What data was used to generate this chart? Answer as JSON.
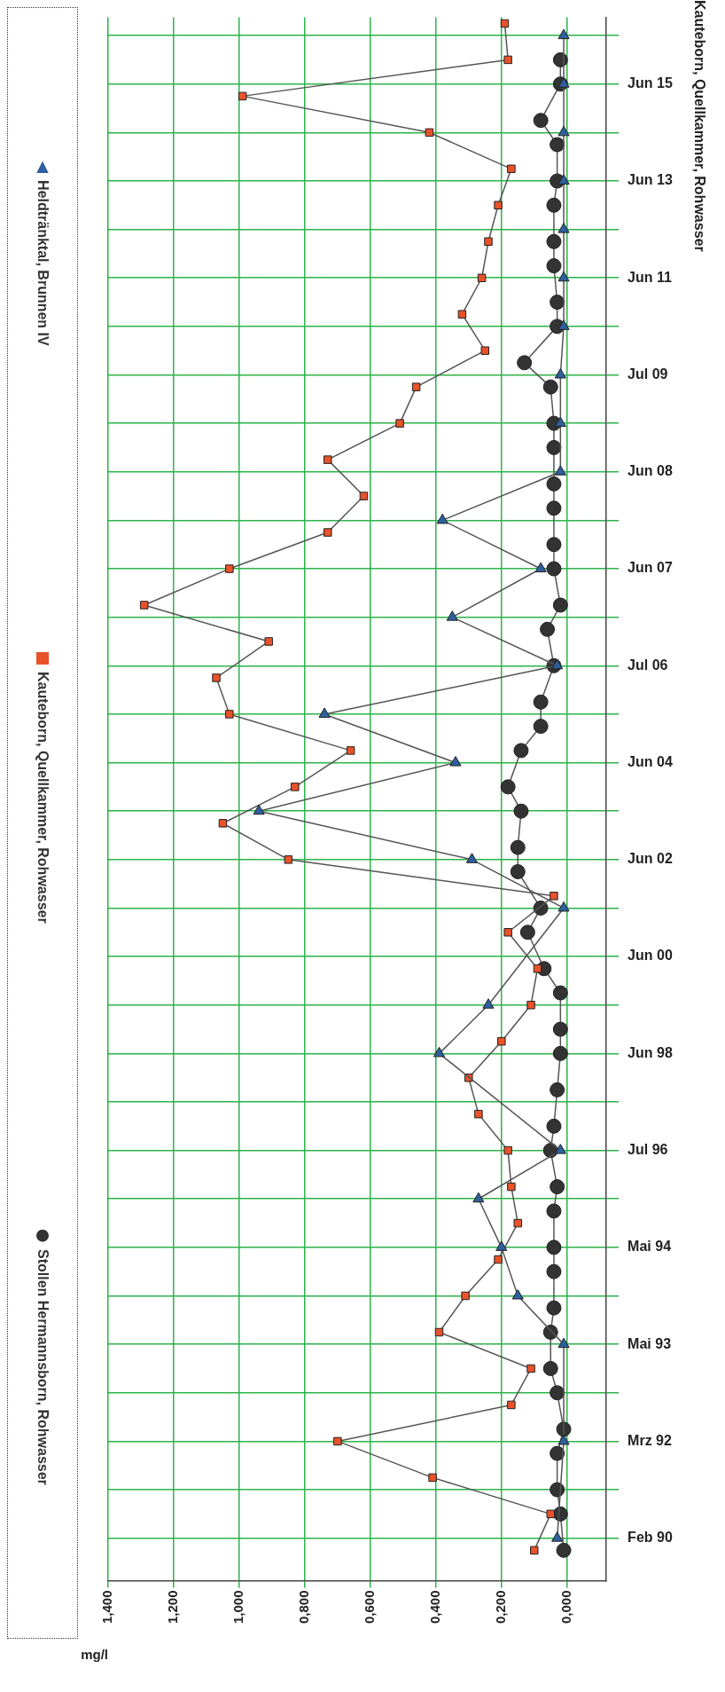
{
  "chart_data": {
    "type": "line",
    "orientation": "horizontal",
    "title": "Kauteborn, Quellkammer, Rohwasser",
    "xlabel": "mg/l",
    "xlim": [
      1.4,
      -0.12
    ],
    "xticks": [
      {
        "value": 1.4,
        "label": "1,400"
      },
      {
        "value": 1.2,
        "label": "1,200"
      },
      {
        "value": 1.0,
        "label": "1,000"
      },
      {
        "value": 0.8,
        "label": "0,800"
      },
      {
        "value": 0.6,
        "label": "0,600"
      },
      {
        "value": 0.4,
        "label": "0,400"
      },
      {
        "value": 0.2,
        "label": "0,200"
      },
      {
        "value": 0,
        "label": "0,000"
      }
    ],
    "categories": [
      null,
      null,
      null,
      null,
      null,
      "Jun 15",
      null,
      null,
      null,
      null,
      null,
      null,
      null,
      "Jun 13",
      null,
      null,
      null,
      null,
      null,
      null,
      null,
      "Jun 11",
      null,
      null,
      null,
      null,
      null,
      null,
      null,
      "Jul 09",
      null,
      null,
      null,
      null,
      null,
      null,
      null,
      "Jun 08",
      null,
      null,
      null,
      null,
      null,
      null,
      null,
      "Jun 07",
      null,
      null,
      null,
      null,
      null,
      null,
      null,
      "Jul 06",
      null,
      null,
      null,
      null,
      null,
      null,
      null,
      "Jun 04",
      null,
      null,
      null,
      null,
      null,
      null,
      null,
      "Jun 02",
      null,
      null,
      null,
      null,
      null,
      null,
      null,
      "Jun 00",
      null,
      null,
      null,
      null,
      null,
      null,
      null,
      "Jun 98",
      null,
      null,
      null,
      null,
      null,
      null,
      null,
      "Jul 96",
      null,
      null,
      null,
      null,
      null,
      null,
      null,
      "Mai 94",
      null,
      null,
      null,
      null,
      null,
      null,
      null,
      "Mai 93",
      null,
      null,
      null,
      null,
      null,
      null,
      null,
      "Mrz 92",
      null,
      null,
      null,
      null,
      null,
      null,
      null,
      "Feb 90",
      null,
      null,
      null
    ],
    "grid": true,
    "legend": "left",
    "series": [
      {
        "name": "Heldtränktal, Brunnen IV",
        "color": "#2e5f9e",
        "marker": "triangle",
        "values": [
          null,
          0.01,
          null,
          null,
          null,
          0.01,
          null,
          null,
          null,
          0.01,
          null,
          null,
          null,
          0.01,
          null,
          null,
          null,
          0.01,
          null,
          null,
          null,
          0.01,
          null,
          null,
          null,
          0.01,
          null,
          null,
          null,
          0.02,
          null,
          null,
          null,
          0.02,
          null,
          null,
          null,
          0.02,
          null,
          null,
          null,
          0.38,
          null,
          null,
          null,
          0.08,
          null,
          null,
          null,
          0.35,
          null,
          null,
          null,
          0.03,
          null,
          null,
          null,
          0.74,
          null,
          null,
          null,
          0.34,
          null,
          null,
          null,
          0.94,
          null,
          null,
          null,
          0.29,
          null,
          null,
          null,
          0.01,
          null,
          null,
          null,
          null,
          null,
          null,
          null,
          0.24,
          null,
          null,
          null,
          0.39,
          null,
          null,
          null,
          null,
          null,
          null,
          null,
          0.02,
          null,
          null,
          null,
          0.27,
          null,
          null,
          null,
          0.2,
          null,
          null,
          null,
          0.15,
          null,
          null,
          null,
          0.01,
          null,
          null,
          null,
          null,
          null,
          null,
          null,
          0.01,
          null,
          null,
          null,
          null,
          null,
          null,
          null,
          0.03,
          null,
          null,
          null
        ]
      },
      {
        "name": "Kauteborn, Quellkammer, Rohwasser",
        "color": "#e8522a",
        "marker": "square",
        "values": [
          0.19,
          null,
          null,
          0.18,
          null,
          null,
          0.99,
          null,
          null,
          0.42,
          null,
          null,
          0.17,
          null,
          null,
          0.21,
          null,
          null,
          0.24,
          null,
          null,
          0.26,
          null,
          null,
          0.32,
          null,
          null,
          0.25,
          null,
          null,
          0.46,
          null,
          null,
          0.51,
          null,
          null,
          0.73,
          null,
          null,
          0.62,
          null,
          null,
          0.73,
          null,
          null,
          1.03,
          null,
          null,
          1.29,
          null,
          null,
          0.91,
          null,
          null,
          1.07,
          null,
          null,
          1.03,
          null,
          null,
          0.66,
          null,
          null,
          0.83,
          null,
          null,
          1.05,
          null,
          null,
          0.85,
          null,
          null,
          0.04,
          null,
          null,
          0.18,
          null,
          null,
          0.09,
          null,
          null,
          0.11,
          null,
          null,
          0.2,
          null,
          null,
          0.3,
          null,
          null,
          0.27,
          null,
          null,
          0.18,
          null,
          null,
          0.17,
          null,
          null,
          0.15,
          null,
          null,
          0.21,
          null,
          null,
          0.31,
          null,
          null,
          0.39,
          null,
          null,
          0.11,
          null,
          null,
          0.17,
          null,
          null,
          0.7,
          null,
          null,
          0.41,
          null,
          null,
          0.05,
          null,
          null,
          0.1,
          null,
          null
        ]
      },
      {
        "name": "Stollen Hermannsborn, Rohwasser",
        "color": "#333333",
        "marker": "circle",
        "values": [
          null,
          null,
          null,
          0.02,
          null,
          0.02,
          null,
          null,
          0.08,
          null,
          0.03,
          null,
          null,
          0.03,
          null,
          0.04,
          null,
          null,
          0.04,
          null,
          0.04,
          null,
          null,
          0.03,
          null,
          0.03,
          null,
          null,
          0.13,
          null,
          0.05,
          null,
          null,
          0.04,
          null,
          0.04,
          null,
          null,
          0.04,
          null,
          0.04,
          null,
          null,
          0.04,
          null,
          0.04,
          null,
          null,
          0.02,
          null,
          0.06,
          null,
          null,
          0.04,
          null,
          null,
          0.08,
          null,
          0.08,
          null,
          0.14,
          null,
          null,
          0.18,
          null,
          0.14,
          null,
          null,
          0.15,
          null,
          0.15,
          null,
          null,
          0.08,
          null,
          0.12,
          null,
          null,
          0.07,
          null,
          0.02,
          null,
          null,
          0.02,
          null,
          0.02,
          null,
          null,
          0.03,
          null,
          null,
          0.04,
          null,
          0.05,
          null,
          null,
          0.03,
          null,
          0.04,
          null,
          null,
          0.04,
          null,
          0.04,
          null,
          null,
          0.04,
          null,
          0.05,
          null,
          null,
          0.05,
          null,
          0.03,
          null,
          null,
          0.01,
          null,
          0.03,
          null,
          null,
          0.03,
          null,
          0.02,
          null,
          null,
          0.01,
          null,
          null
        ]
      }
    ]
  }
}
